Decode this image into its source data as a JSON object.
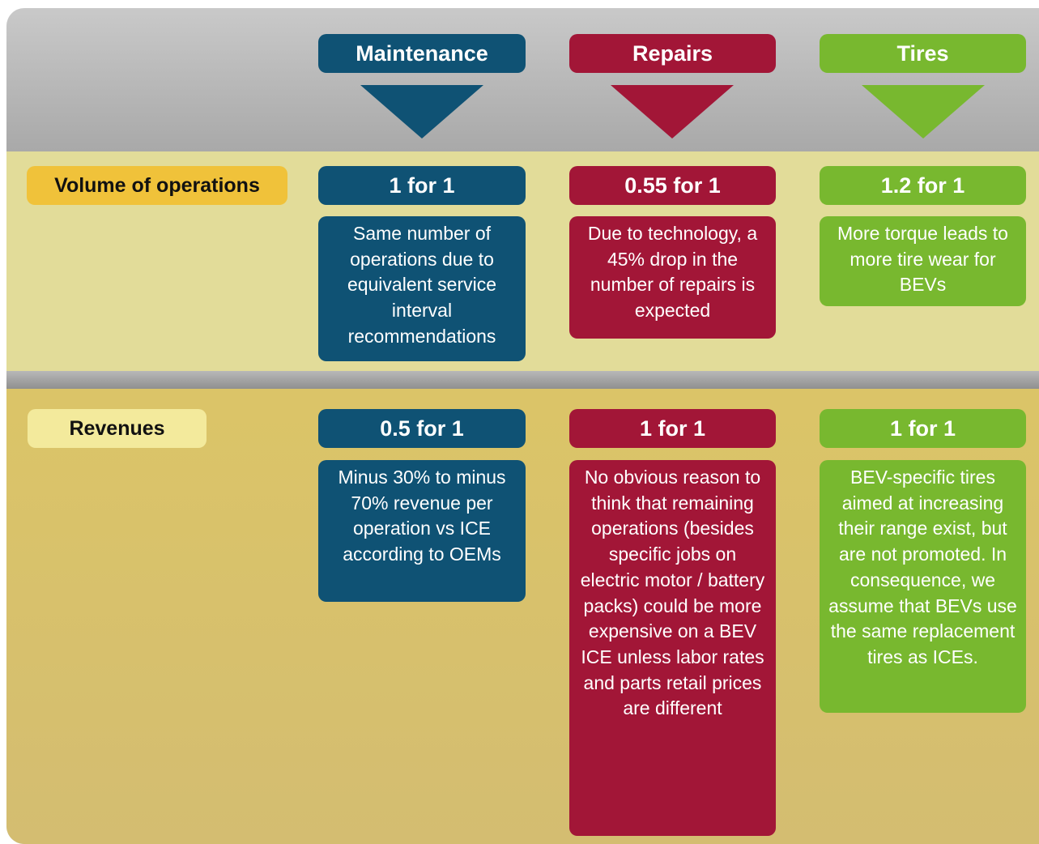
{
  "columns": [
    {
      "title": "Maintenance"
    },
    {
      "title": "Repairs"
    },
    {
      "title": "Tires"
    }
  ],
  "rows": [
    {
      "label": "Volume of operations",
      "cells": [
        {
          "ratio": "1 for 1",
          "text": "Same number of operations due to equivalent service interval recommendations"
        },
        {
          "ratio": "0.55 for 1",
          "text": "Due to technology, a 45% drop in the number of repairs is expected"
        },
        {
          "ratio": "1.2 for 1",
          "text": "More torque leads to more tire wear for BEVs"
        }
      ]
    },
    {
      "label": "Revenues",
      "cells": [
        {
          "ratio": "0.5 for 1",
          "text": "Minus 30% to minus 70% revenue per operation vs ICE according to OEMs"
        },
        {
          "ratio": "1 for 1",
          "text": "No obvious reason to think that remaining operations (besides specific jobs on electric motor / battery packs) could be more expensive on a BEV ICE unless labor rates and parts retail prices are different"
        },
        {
          "ratio": "1 for 1",
          "text": "BEV-specific tires aimed at increasing their range exist, but are not promoted. In consequence, we assume that BEVs use the same replacement tires as ICEs."
        }
      ]
    }
  ]
}
